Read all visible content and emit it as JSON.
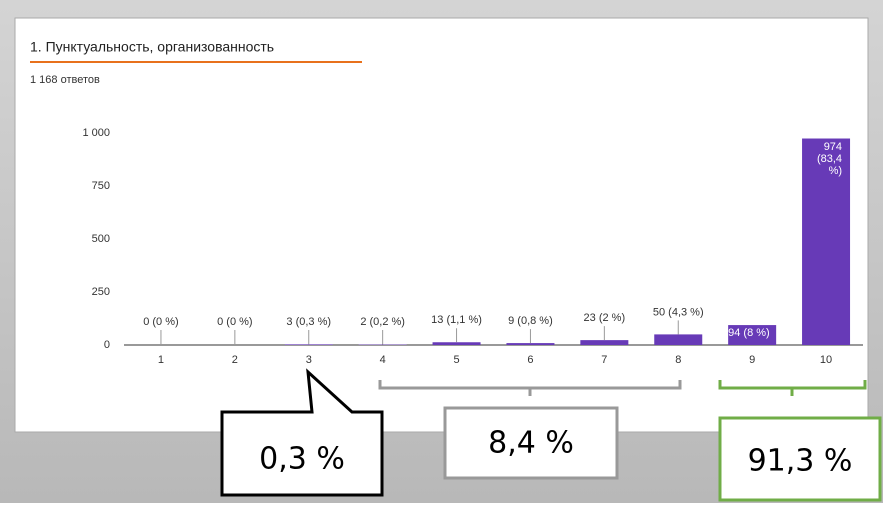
{
  "chart_data": {
    "type": "bar",
    "title": "1. Пунктуальность, организованность",
    "subtitle": "1 168 ответов",
    "categories": [
      "1",
      "2",
      "3",
      "4",
      "5",
      "6",
      "7",
      "8",
      "9",
      "10"
    ],
    "values": [
      0,
      0,
      3,
      2,
      13,
      9,
      23,
      50,
      94,
      974
    ],
    "value_labels": [
      "0 (0 %)",
      "0 (0 %)",
      "3 (0,3 %)",
      "2 (0,2 %)",
      "13 (1,1 %)",
      "9 (0,8 %)",
      "23 (2 %)",
      "50 (4,3 %)",
      "94 (8 %)",
      "974 (83,4 %)"
    ],
    "color": "#673ab7",
    "ylim": [
      0,
      1000
    ],
    "yticks": [
      0,
      250,
      500,
      750,
      {
        "value": 1000,
        "label": "1 000"
      }
    ],
    "grid": false,
    "annotations": [
      "0,3 %",
      "8,4 %",
      "91,3 %"
    ]
  }
}
